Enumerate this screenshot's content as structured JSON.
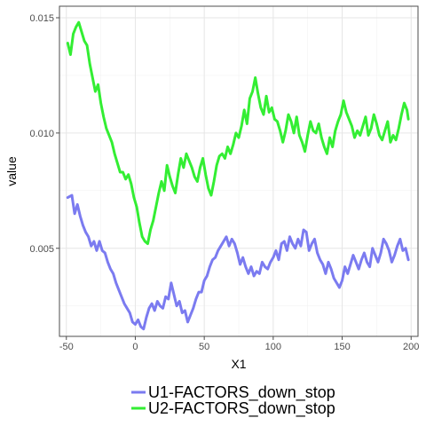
{
  "chart_data": {
    "type": "line",
    "xlabel": "X1",
    "ylabel": "value",
    "xlim": [
      -55,
      205
    ],
    "ylim": [
      0.00118,
      0.0155
    ],
    "x_ticks": [
      -50,
      0,
      50,
      100,
      150,
      200
    ],
    "x_tick_labels": [
      "-50",
      "0",
      "50",
      "100",
      "150",
      "200"
    ],
    "y_ticks": [
      0.005,
      0.01,
      0.015
    ],
    "y_tick_labels": [
      "0.005",
      "0.010",
      "0.015"
    ],
    "grid": true,
    "legend_position": "bottom",
    "series": [
      {
        "name": "U1-FACTORS_down_stop",
        "color": "#7b7bf0",
        "x": [
          -49,
          -46,
          -44,
          -42,
          -40,
          -38,
          -36,
          -34,
          -32,
          -30,
          -28,
          -26,
          -24,
          -22,
          -20,
          -18,
          -16,
          -14,
          -12,
          -10,
          -8,
          -6,
          -4,
          -2,
          0,
          2,
          4,
          6,
          8,
          10,
          12,
          14,
          16,
          18,
          20,
          22,
          24,
          26,
          28,
          30,
          32,
          34,
          36,
          38,
          40,
          42,
          44,
          46,
          48,
          50,
          52,
          54,
          56,
          58,
          60,
          62,
          64,
          66,
          68,
          70,
          72,
          74,
          76,
          78,
          80,
          82,
          84,
          86,
          88,
          90,
          92,
          94,
          96,
          98,
          100,
          102,
          104,
          106,
          108,
          110,
          112,
          114,
          116,
          118,
          120,
          122,
          124,
          126,
          128,
          130,
          132,
          134,
          136,
          138,
          140,
          142,
          144,
          146,
          148,
          150,
          152,
          154,
          156,
          158,
          160,
          162,
          164,
          166,
          168,
          170,
          172,
          174,
          176,
          178,
          180,
          182,
          184,
          186,
          188,
          190,
          192,
          194,
          196,
          198
        ],
        "values": [
          0.0072,
          0.0073,
          0.0065,
          0.0069,
          0.0064,
          0.006,
          0.0057,
          0.0055,
          0.0051,
          0.0053,
          0.0049,
          0.0053,
          0.0049,
          0.0048,
          0.0044,
          0.0041,
          0.0039,
          0.0035,
          0.0032,
          0.0029,
          0.0026,
          0.0024,
          0.0022,
          0.0018,
          0.0017,
          0.0019,
          0.0016,
          0.0015,
          0.002,
          0.0024,
          0.0026,
          0.0023,
          0.0027,
          0.0025,
          0.0024,
          0.0029,
          0.0028,
          0.0035,
          0.003,
          0.0025,
          0.0027,
          0.0022,
          0.0023,
          0.0018,
          0.0021,
          0.0024,
          0.0028,
          0.0031,
          0.0031,
          0.0036,
          0.0038,
          0.0042,
          0.0045,
          0.0046,
          0.0049,
          0.0051,
          0.0053,
          0.0055,
          0.0051,
          0.0054,
          0.0052,
          0.0048,
          0.0043,
          0.0046,
          0.0042,
          0.0039,
          0.0042,
          0.0038,
          0.004,
          0.0039,
          0.0044,
          0.0042,
          0.0041,
          0.0044,
          0.0046,
          0.0049,
          0.0045,
          0.0052,
          0.0053,
          0.0049,
          0.0055,
          0.0052,
          0.005,
          0.0054,
          0.0051,
          0.0058,
          0.0057,
          0.0049,
          0.0052,
          0.0054,
          0.0048,
          0.0045,
          0.0043,
          0.0039,
          0.0044,
          0.0041,
          0.0037,
          0.0035,
          0.0033,
          0.0036,
          0.0042,
          0.0039,
          0.0043,
          0.0047,
          0.0044,
          0.0041,
          0.0045,
          0.0048,
          0.0044,
          0.0042,
          0.005,
          0.0047,
          0.0044,
          0.0048,
          0.0054,
          0.0052,
          0.0049,
          0.0044,
          0.0047,
          0.0051,
          0.0054,
          0.0049,
          0.005,
          0.0045
        ]
      },
      {
        "name": "U2-FACTORS_down_stop",
        "color": "#33ee33",
        "x": [
          -49,
          -47,
          -45,
          -43,
          -41,
          -39,
          -37,
          -35,
          -33,
          -31,
          -29,
          -27,
          -25,
          -23,
          -21,
          -19,
          -17,
          -15,
          -13,
          -11,
          -9,
          -7,
          -5,
          -3,
          -1,
          1,
          3,
          5,
          7,
          9,
          11,
          13,
          15,
          17,
          19,
          21,
          23,
          25,
          27,
          29,
          31,
          33,
          35,
          37,
          39,
          41,
          43,
          45,
          47,
          49,
          51,
          53,
          55,
          57,
          59,
          61,
          63,
          65,
          67,
          69,
          71,
          73,
          75,
          77,
          79,
          81,
          83,
          85,
          87,
          89,
          91,
          93,
          95,
          97,
          99,
          101,
          103,
          105,
          107,
          109,
          111,
          113,
          115,
          117,
          119,
          121,
          123,
          125,
          127,
          129,
          131,
          133,
          135,
          137,
          139,
          141,
          143,
          145,
          147,
          149,
          151,
          153,
          155,
          157,
          159,
          161,
          163,
          165,
          167,
          169,
          171,
          173,
          175,
          177,
          179,
          181,
          183,
          185,
          187,
          189,
          191,
          193,
          195,
          197,
          198
        ],
        "values": [
          0.0139,
          0.0134,
          0.0143,
          0.0146,
          0.0148,
          0.0144,
          0.014,
          0.0138,
          0.013,
          0.0124,
          0.0118,
          0.0121,
          0.0113,
          0.0107,
          0.0102,
          0.0099,
          0.0096,
          0.0091,
          0.0087,
          0.0083,
          0.0083,
          0.008,
          0.0082,
          0.0078,
          0.0072,
          0.0068,
          0.0061,
          0.0055,
          0.0053,
          0.0052,
          0.0058,
          0.0062,
          0.0068,
          0.0074,
          0.0079,
          0.0075,
          0.0086,
          0.0081,
          0.0077,
          0.0074,
          0.0082,
          0.0089,
          0.0085,
          0.0091,
          0.0088,
          0.0085,
          0.0081,
          0.0079,
          0.0085,
          0.0089,
          0.0082,
          0.0076,
          0.0073,
          0.0079,
          0.0086,
          0.009,
          0.0091,
          0.0089,
          0.0094,
          0.0091,
          0.0095,
          0.01,
          0.0098,
          0.0103,
          0.011,
          0.0104,
          0.0115,
          0.0118,
          0.0124,
          0.0117,
          0.0111,
          0.0108,
          0.0116,
          0.0109,
          0.0111,
          0.0106,
          0.0105,
          0.0101,
          0.0096,
          0.0101,
          0.0108,
          0.0105,
          0.01,
          0.0107,
          0.0099,
          0.0096,
          0.0092,
          0.0099,
          0.0105,
          0.0101,
          0.01,
          0.0104,
          0.0098,
          0.0094,
          0.0091,
          0.0098,
          0.0094,
          0.0101,
          0.0105,
          0.0108,
          0.0114,
          0.0109,
          0.0106,
          0.0103,
          0.0098,
          0.0101,
          0.0099,
          0.0103,
          0.0107,
          0.0099,
          0.0102,
          0.0108,
          0.0104,
          0.0099,
          0.0097,
          0.0101,
          0.0105,
          0.0096,
          0.0099,
          0.0097,
          0.0102,
          0.0108,
          0.0113,
          0.011,
          0.0106
        ]
      }
    ]
  }
}
